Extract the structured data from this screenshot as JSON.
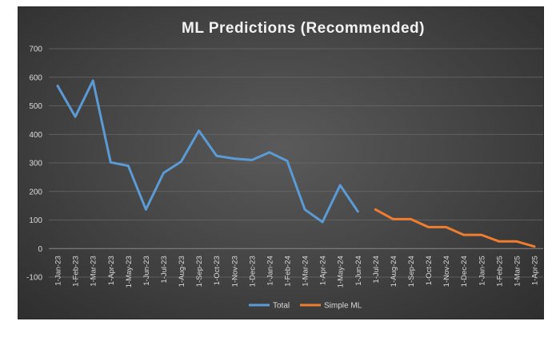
{
  "chart_data": {
    "type": "line",
    "title": "ML Predictions (Recommended)",
    "xlabel": "",
    "ylabel": "",
    "ylim": [
      -100,
      700
    ],
    "yticks": [
      -100,
      0,
      100,
      200,
      300,
      400,
      500,
      600,
      700
    ],
    "grid": true,
    "legend": "bottom",
    "categories": [
      "1-Jan-23",
      "1-Feb-23",
      "1-Mar-23",
      "1-Apr-23",
      "1-May-23",
      "1-Jun-23",
      "1-Jul-23",
      "1-Aug-23",
      "1-Sep-23",
      "1-Oct-23",
      "1-Nov-23",
      "1-Dec-23",
      "1-Jan-24",
      "1-Feb-24",
      "1-Mar-24",
      "1-Apr-24",
      "1-May-24",
      "1-Jun-24",
      "1-Jul-24",
      "1-Aug-24",
      "1-Sep-24",
      "1-Oct-24",
      "1-Nov-24",
      "1-Dec-24",
      "1-Jan-25",
      "1-Feb-25",
      "1-Mar-25",
      "1-Apr-25"
    ],
    "series": [
      {
        "name": "Total",
        "color": "#5b9bd5",
        "values": [
          570,
          462,
          588,
          302,
          290,
          137,
          265,
          305,
          413,
          325,
          315,
          310,
          337,
          307,
          137,
          93,
          222,
          130,
          null,
          null,
          null,
          null,
          null,
          null,
          null,
          null,
          null,
          null
        ]
      },
      {
        "name": "Simple ML",
        "color": "#ed7d31",
        "values": [
          null,
          null,
          null,
          null,
          null,
          null,
          null,
          null,
          null,
          null,
          null,
          null,
          null,
          null,
          null,
          null,
          null,
          null,
          137,
          103,
          103,
          75,
          75,
          48,
          48,
          25,
          25,
          7
        ]
      }
    ]
  }
}
